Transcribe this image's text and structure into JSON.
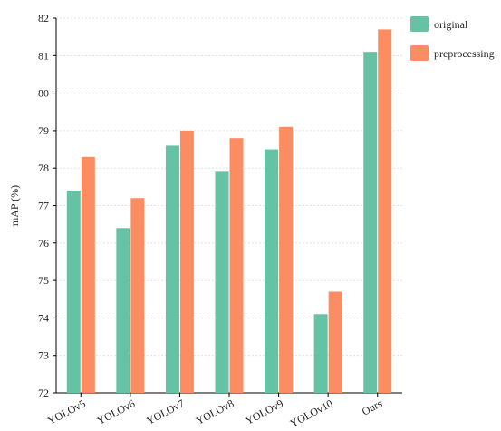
{
  "chart_data": {
    "type": "bar",
    "title": "",
    "xlabel": "",
    "ylabel": "mAP (%)",
    "ylim": [
      72,
      82
    ],
    "yticks": [
      72,
      73,
      74,
      75,
      76,
      77,
      78,
      79,
      80,
      81,
      82
    ],
    "grid": true,
    "legend_position": "top-right",
    "categories": [
      "YOLOv5",
      "YOLOv6",
      "YOLOv7",
      "YOLOv8",
      "YOLOv9",
      "YOLOv10",
      "Ours"
    ],
    "series": [
      {
        "name": "original",
        "color": "#66c2a5",
        "values": [
          77.4,
          76.4,
          78.6,
          77.9,
          78.5,
          74.1,
          81.1
        ]
      },
      {
        "name": "preprocessing",
        "color": "#fc8d62",
        "values": [
          78.3,
          77.2,
          79.0,
          78.8,
          79.1,
          74.7,
          81.7
        ]
      }
    ]
  }
}
